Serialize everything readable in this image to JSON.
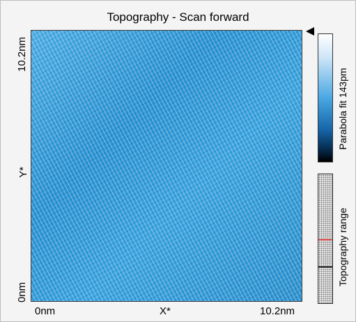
{
  "window": {
    "title": "Topography - Scan forward"
  },
  "axes": {
    "y_top": "10.2nm",
    "y_label": "Y*",
    "y_bottom": "0nm",
    "x_left": "0nm",
    "x_label": "X*",
    "x_right": "10.2nm"
  },
  "colorbar": {
    "label": "Parabola fit 143pm",
    "gradient": [
      "#ffffff",
      "#4aa8e3",
      "#000000"
    ]
  },
  "range_bar": {
    "label": "Topography range",
    "marker_colors": [
      "#dd4444",
      "#111111"
    ]
  },
  "image": {
    "type": "STM topography scan",
    "base_color": "#2f9bd9"
  }
}
